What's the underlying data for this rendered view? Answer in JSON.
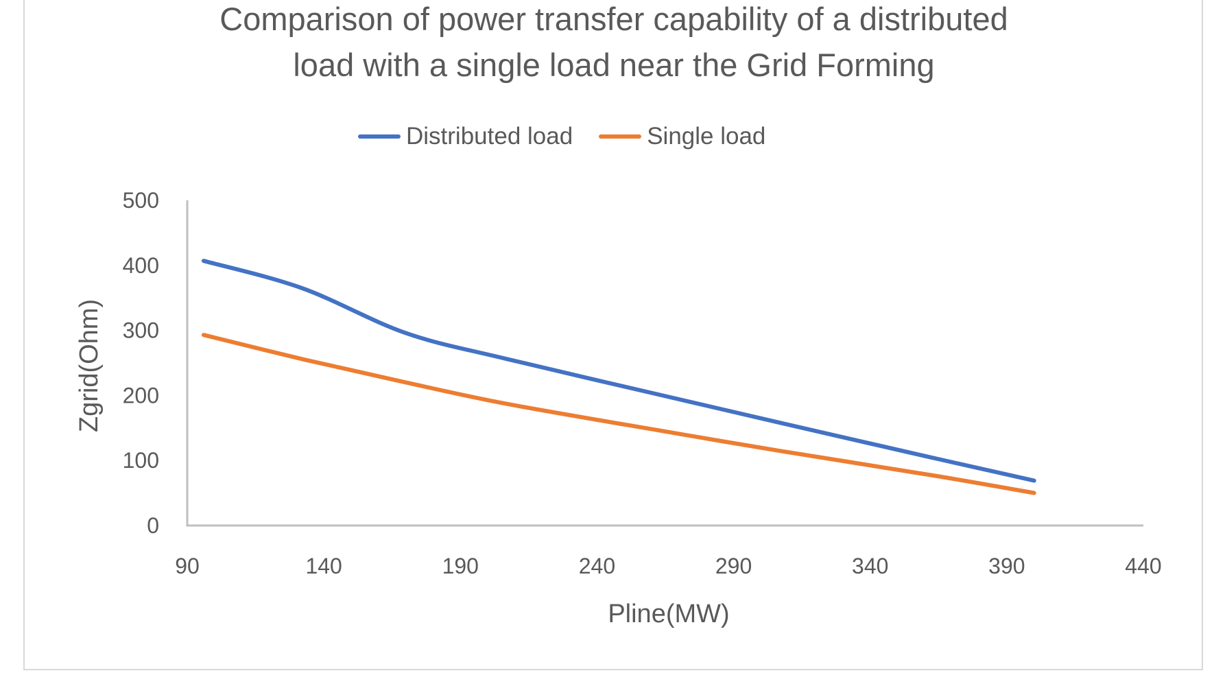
{
  "chart_data": {
    "type": "line",
    "title": "Comparison of power transfer capability of a distributed load with a single load near the Grid Forming",
    "title_lines": [
      "Comparison of power transfer capability of a distributed",
      "load with a single load near the Grid Forming"
    ],
    "xlabel": "Pline(MW)",
    "ylabel": "Zgrid(Ohm)",
    "xlim": [
      90,
      440
    ],
    "ylim": [
      0,
      500
    ],
    "x_ticks": [
      90,
      140,
      190,
      240,
      290,
      340,
      390,
      440
    ],
    "y_ticks": [
      0,
      100,
      200,
      300,
      400,
      500
    ],
    "grid": false,
    "legend_position": "top",
    "series": [
      {
        "name": "Distributed load",
        "color": "#4472C4",
        "x": [
          96,
          132,
          170,
          207,
          263,
          308,
          363,
          400
        ],
        "y": [
          407,
          365,
          296,
          256,
          201,
          157,
          104,
          69
        ]
      },
      {
        "name": "Single load",
        "color": "#ED7D31",
        "x": [
          96,
          133,
          170,
          207,
          263,
          308,
          363,
          400
        ],
        "y": [
          293,
          255,
          220,
          187,
          146,
          114,
          77,
          50
        ]
      }
    ]
  },
  "colors": {
    "axis": "#BFBFBF",
    "text": "#595959",
    "border": "#D9D9D9"
  }
}
